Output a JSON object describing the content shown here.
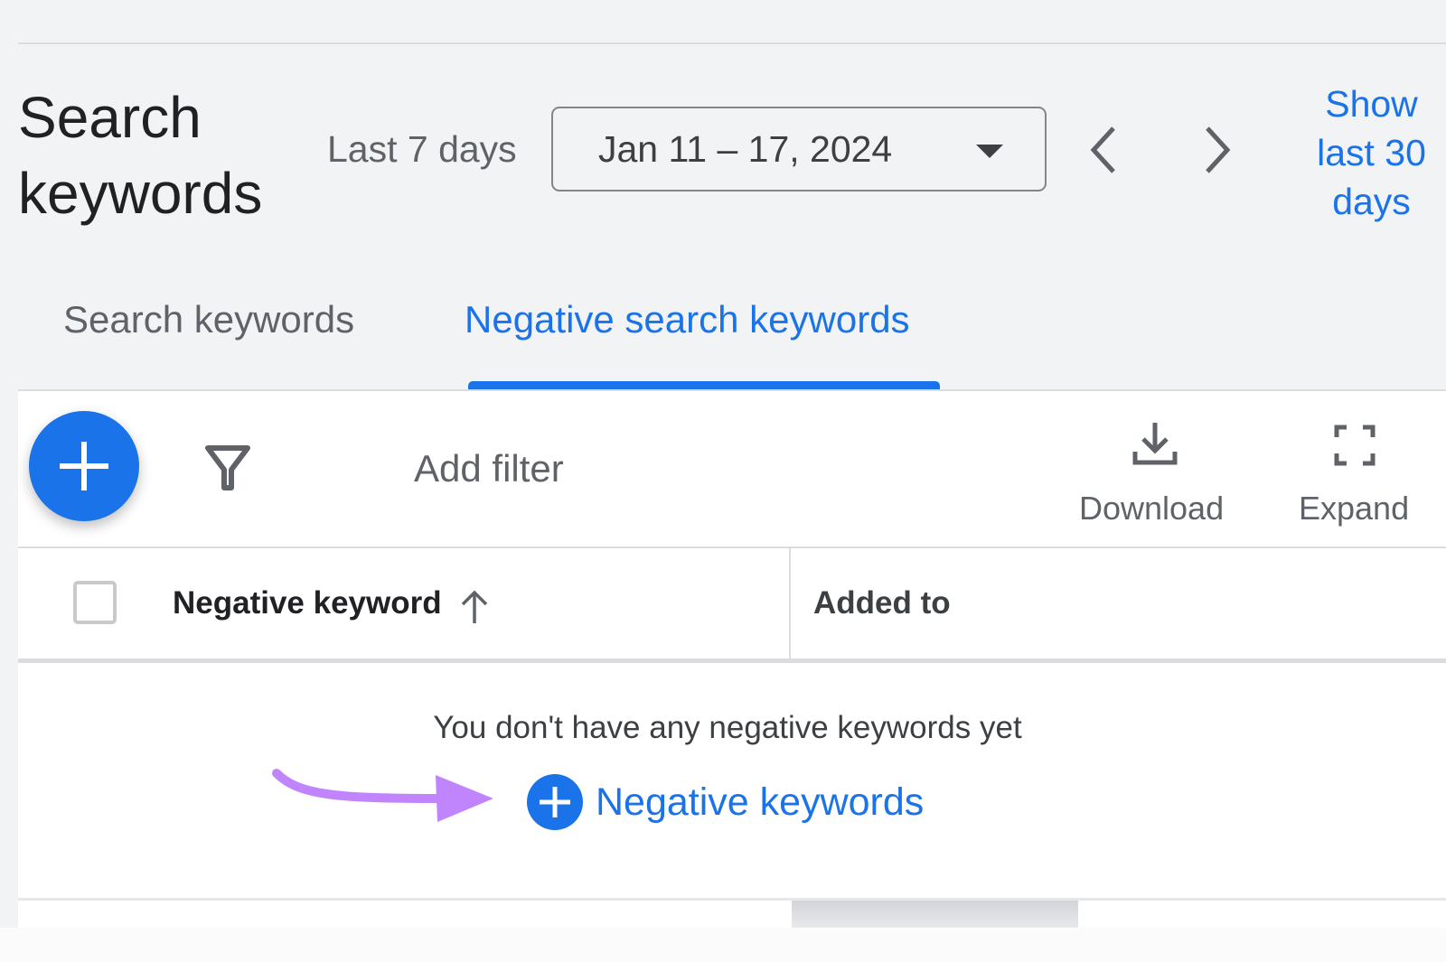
{
  "header": {
    "title": "Search keywords",
    "period_label": "Last 7 days",
    "date_range": "Jan 11 – 17, 2024",
    "show_last_30_link": "Show last 30 days"
  },
  "tabs": [
    {
      "label": "Search keywords",
      "active": false
    },
    {
      "label": "Negative search keywords",
      "active": true
    }
  ],
  "toolbar": {
    "add_filter_label": "Add filter",
    "download_label": "Download",
    "expand_label": "Expand"
  },
  "table": {
    "columns": [
      "Negative keyword",
      "Added to"
    ],
    "sort": "ascending",
    "empty_message": "You don't have any negative keywords yet",
    "add_link_label": "Negative keywords"
  },
  "colors": {
    "accent": "#1a73e8",
    "annotation_arrow": "#c084fc"
  },
  "icons": [
    "plus-icon",
    "filter-icon",
    "download-icon",
    "expand-icon",
    "chevron-left-icon",
    "chevron-right-icon",
    "dropdown-caret-icon",
    "sort-arrow-up-icon"
  ]
}
